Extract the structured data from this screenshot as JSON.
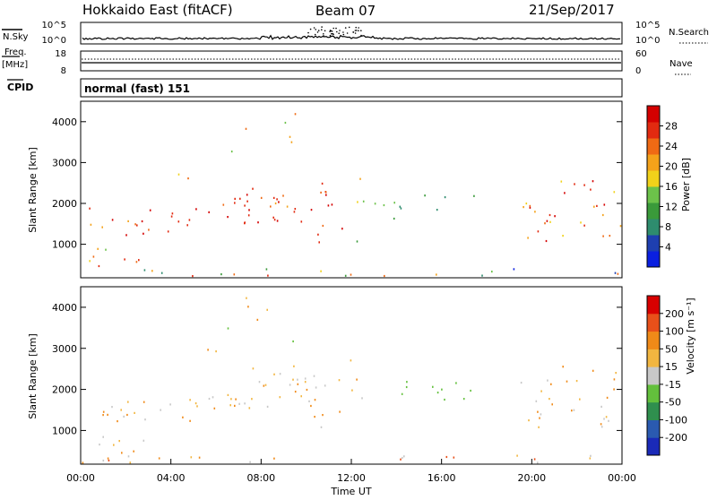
{
  "header": {
    "station": "Hokkaido East (fitACF)",
    "beam": "Beam 07",
    "date": "21/Sep/2017"
  },
  "colors": {
    "power_scale": [
      "#0a1fe0",
      "#1e3fb0",
      "#2e8c6e",
      "#3a9a3a",
      "#6cc24a",
      "#f1d21a",
      "#f4a21a",
      "#ef6a14",
      "#e22a10",
      "#d40000"
    ],
    "velocity_scale": [
      "#1a2ab8",
      "#2a5ab0",
      "#2f8f4e",
      "#63c03c",
      "#c8c8c8",
      "#f2b640",
      "#f08a18",
      "#e8501a",
      "#d80000"
    ]
  },
  "chart_data": [
    {
      "type": "line",
      "name": "noise-panel",
      "left_label": "N.Sky",
      "right_label": "N.Search",
      "left_ticks": [
        "10^5",
        "10^0"
      ],
      "right_ticks": [
        "10^5",
        "10^0"
      ]
    },
    {
      "type": "line",
      "name": "frequency-panel",
      "left_label_top": "Freq.",
      "left_label_bottom": "[MHz]",
      "right_label": "Nave",
      "left_ticks": [
        "18",
        "8"
      ],
      "right_ticks": [
        "60",
        "0"
      ]
    },
    {
      "type": "table",
      "name": "cpid-panel",
      "label": "CPID",
      "value": "normal (fast) 151"
    },
    {
      "type": "heatmap",
      "name": "power-panel",
      "ylabel": "Slant Range [km]",
      "y_ticks": [
        "4000",
        "3000",
        "2000",
        "1000"
      ],
      "colorbar_label": "Power [dB]",
      "colorbar_ticks": [
        "28",
        "24",
        "20",
        "16",
        "12",
        "8",
        "4"
      ],
      "ylim": [
        180,
        4500
      ]
    },
    {
      "type": "heatmap",
      "name": "velocity-panel",
      "ylabel": "Slant Range [km]",
      "y_ticks": [
        "4000",
        "3000",
        "2000",
        "1000"
      ],
      "colorbar_label": "Velocity [m s⁻¹]",
      "colorbar_ticks": [
        "200",
        "100",
        "50",
        "15",
        "-15",
        "-50",
        "-100",
        "-200"
      ],
      "ylim": [
        180,
        4500
      ],
      "x_ticks": [
        "00:00",
        "04:00",
        "08:00",
        "12:00",
        "16:00",
        "20:00",
        "00:00"
      ],
      "xlabel": "Time UT"
    }
  ]
}
